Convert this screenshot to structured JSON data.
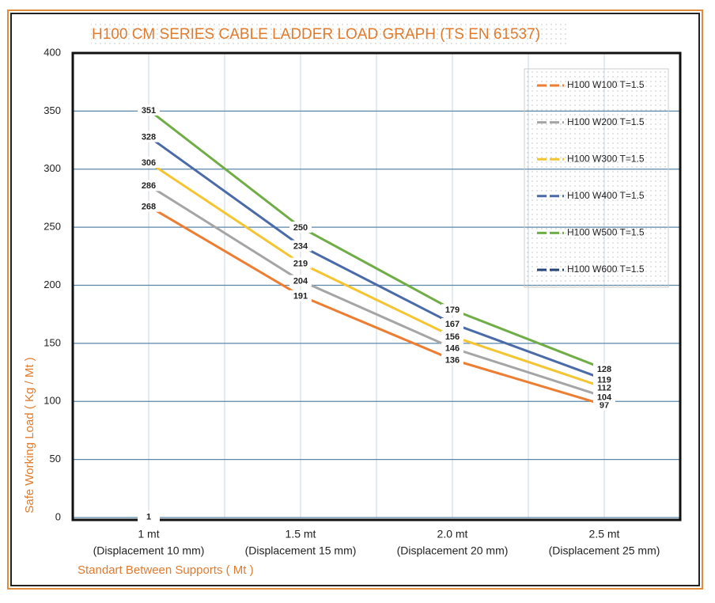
{
  "chart_data": {
    "type": "line",
    "title": "H100 CM SERIES CABLE LADDER LOAD GRAPH (TS EN 61537)",
    "y_label": "Safe Working Load ( Kg / Mt )",
    "x_label": "Standart Between Supports ( Mt )",
    "categories": [
      [
        "1 mt",
        "(Displacement 10 mm)"
      ],
      [
        "1.5 mt",
        "(Displacement 15 mm)"
      ],
      [
        "2.0 mt",
        "(Displacement 20 mm)"
      ],
      [
        "2.5 mt",
        "(Displacement 25 mm)"
      ]
    ],
    "ylim": [
      0,
      400
    ],
    "yticks": [
      0,
      50,
      100,
      150,
      200,
      250,
      300,
      350,
      400
    ],
    "grid": true,
    "legend": "upper right",
    "series": [
      {
        "name": "H100 W100 T=1.5",
        "color": "#ed7d31",
        "values": [
          268,
          191,
          136,
          97
        ]
      },
      {
        "name": "H100 W200 T=1.5",
        "color": "#a5a5a5",
        "values": [
          286,
          204,
          146,
          104
        ]
      },
      {
        "name": "H100 W300 T=1.5",
        "color": "#f4c431",
        "values": [
          306,
          219,
          156,
          112
        ]
      },
      {
        "name": "H100 W400 T=1.5",
        "color": "#4a6aa8",
        "values": [
          328,
          234,
          167,
          119
        ]
      },
      {
        "name": "H100 W500 T=1.5",
        "color": "#70ad47",
        "values": [
          351,
          250,
          179,
          128
        ]
      },
      {
        "name": "H100 W600 T=1.5",
        "color": "#264478",
        "values": [
          1,
          null,
          null,
          null
        ]
      }
    ]
  }
}
